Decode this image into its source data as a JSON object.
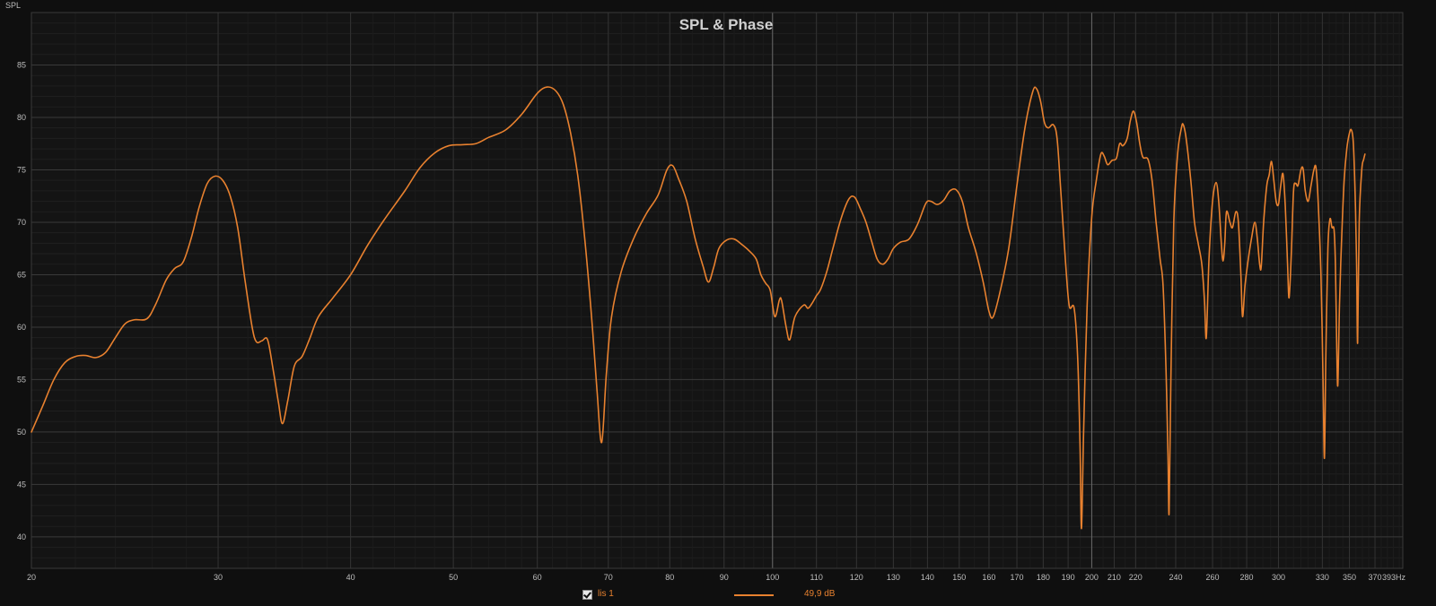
{
  "chart_data": {
    "type": "line",
    "title": "SPL & Phase",
    "ylabel": "SPL",
    "xunit": "Hz",
    "xscale": "log",
    "xlim": [
      20,
      393
    ],
    "ylim": [
      37,
      90
    ],
    "grid": true,
    "xticks": [
      {
        "v": 20,
        "label": "20"
      },
      {
        "v": 30,
        "label": "30"
      },
      {
        "v": 40,
        "label": "40"
      },
      {
        "v": 50,
        "label": "50"
      },
      {
        "v": 60,
        "label": "60"
      },
      {
        "v": 70,
        "label": "70"
      },
      {
        "v": 80,
        "label": "80"
      },
      {
        "v": 90,
        "label": "90"
      },
      {
        "v": 100,
        "label": "100"
      },
      {
        "v": 110,
        "label": "110"
      },
      {
        "v": 120,
        "label": "120"
      },
      {
        "v": 130,
        "label": "130"
      },
      {
        "v": 140,
        "label": "140"
      },
      {
        "v": 150,
        "label": "150"
      },
      {
        "v": 160,
        "label": "160"
      },
      {
        "v": 170,
        "label": "170"
      },
      {
        "v": 180,
        "label": "180"
      },
      {
        "v": 190,
        "label": "190"
      },
      {
        "v": 200,
        "label": "200"
      },
      {
        "v": 210,
        "label": "210"
      },
      {
        "v": 220,
        "label": "220"
      },
      {
        "v": 240,
        "label": "240"
      },
      {
        "v": 260,
        "label": "260"
      },
      {
        "v": 280,
        "label": "280"
      },
      {
        "v": 300,
        "label": "300"
      },
      {
        "v": 330,
        "label": "330"
      },
      {
        "v": 350,
        "label": "350"
      },
      {
        "v": 370,
        "label": "370"
      },
      {
        "v": 393,
        "label": "393Hz"
      }
    ],
    "yticks": [
      40,
      45,
      50,
      55,
      60,
      65,
      70,
      75,
      80,
      85
    ],
    "series": [
      {
        "name": "lis 1",
        "color": "#e8812f",
        "points": [
          [
            20,
            50
          ],
          [
            20.5,
            52.5
          ],
          [
            21,
            55
          ],
          [
            21.5,
            56.6
          ],
          [
            22,
            57.2
          ],
          [
            22.5,
            57.3
          ],
          [
            23,
            57.1
          ],
          [
            23.5,
            57.6
          ],
          [
            24,
            59
          ],
          [
            24.5,
            60.3
          ],
          [
            25,
            60.7
          ],
          [
            25.7,
            60.8
          ],
          [
            26.2,
            62.2
          ],
          [
            26.8,
            64.5
          ],
          [
            27.3,
            65.6
          ],
          [
            27.8,
            66.2
          ],
          [
            28.3,
            68.5
          ],
          [
            28.8,
            71.5
          ],
          [
            29.3,
            73.7
          ],
          [
            29.8,
            74.4
          ],
          [
            30.3,
            74
          ],
          [
            30.8,
            72.5
          ],
          [
            31.3,
            69.5
          ],
          [
            31.8,
            64.5
          ],
          [
            32.3,
            60
          ],
          [
            32.6,
            58.6
          ],
          [
            33,
            58.7
          ],
          [
            33.4,
            58.8
          ],
          [
            33.8,
            56
          ],
          [
            34.2,
            52.8
          ],
          [
            34.5,
            50.8
          ],
          [
            34.9,
            53
          ],
          [
            35.4,
            56.3
          ],
          [
            36,
            57.2
          ],
          [
            36.6,
            58.9
          ],
          [
            37.3,
            61
          ],
          [
            38.5,
            62.8
          ],
          [
            40,
            65
          ],
          [
            41.5,
            67.8
          ],
          [
            43,
            70.2
          ],
          [
            45,
            73
          ],
          [
            46.5,
            75.2
          ],
          [
            48,
            76.6
          ],
          [
            49.5,
            77.3
          ],
          [
            51,
            77.4
          ],
          [
            52.5,
            77.5
          ],
          [
            54,
            78.1
          ],
          [
            56,
            78.8
          ],
          [
            58,
            80.3
          ],
          [
            60,
            82.3
          ],
          [
            61.3,
            82.9
          ],
          [
            62.5,
            82.5
          ],
          [
            63.5,
            81.2
          ],
          [
            64.5,
            78.5
          ],
          [
            65.5,
            74.5
          ],
          [
            66.5,
            68.5
          ],
          [
            67.5,
            61
          ],
          [
            68.3,
            54
          ],
          [
            69,
            49
          ],
          [
            69.7,
            55.5
          ],
          [
            70.5,
            61
          ],
          [
            72,
            65.3
          ],
          [
            74,
            68.5
          ],
          [
            76,
            70.8
          ],
          [
            78,
            72.6
          ],
          [
            79.5,
            75
          ],
          [
            80.5,
            75.4
          ],
          [
            81.5,
            74.2
          ],
          [
            83,
            72
          ],
          [
            84.5,
            68.5
          ],
          [
            86,
            65.8
          ],
          [
            87,
            64.3
          ],
          [
            88,
            65.7
          ],
          [
            89,
            67.5
          ],
          [
            90.5,
            68.3
          ],
          [
            92,
            68.4
          ],
          [
            93.5,
            67.9
          ],
          [
            95,
            67.3
          ],
          [
            96.5,
            66.5
          ],
          [
            97.5,
            65
          ],
          [
            98.5,
            64.2
          ],
          [
            99.5,
            63.5
          ],
          [
            100.5,
            61
          ],
          [
            101.5,
            62.6
          ],
          [
            102,
            62.5
          ],
          [
            103,
            60
          ],
          [
            103.8,
            58.8
          ],
          [
            105,
            61
          ],
          [
            107,
            62.1
          ],
          [
            108,
            61.8
          ],
          [
            109,
            62.3
          ],
          [
            110,
            63
          ],
          [
            111,
            63.6
          ],
          [
            112.5,
            65.3
          ],
          [
            114,
            67.5
          ],
          [
            116,
            70.3
          ],
          [
            118,
            72.2
          ],
          [
            119.5,
            72.4
          ],
          [
            121,
            71.3
          ],
          [
            122.5,
            70
          ],
          [
            124,
            68.2
          ],
          [
            125.5,
            66.5
          ],
          [
            127,
            66
          ],
          [
            128.5,
            66.5
          ],
          [
            130,
            67.5
          ],
          [
            132,
            68.1
          ],
          [
            134.5,
            68.4
          ],
          [
            137,
            69.8
          ],
          [
            139.5,
            71.8
          ],
          [
            141,
            72
          ],
          [
            143,
            71.7
          ],
          [
            145,
            72.1
          ],
          [
            147,
            73
          ],
          [
            149,
            73.1
          ],
          [
            151,
            72
          ],
          [
            153,
            69.5
          ],
          [
            155.5,
            67.2
          ],
          [
            158,
            64.3
          ],
          [
            160,
            61.5
          ],
          [
            161.5,
            61
          ],
          [
            164,
            63.5
          ],
          [
            167,
            67.5
          ],
          [
            170,
            73.5
          ],
          [
            173,
            79
          ],
          [
            176,
            82.5
          ],
          [
            177.5,
            82.7
          ],
          [
            179,
            81.5
          ],
          [
            180.5,
            79.5
          ],
          [
            182,
            79
          ],
          [
            184,
            79.3
          ],
          [
            185.5,
            78
          ],
          [
            187,
            73
          ],
          [
            189,
            66
          ],
          [
            190.5,
            62
          ],
          [
            192.5,
            61.8
          ],
          [
            194,
            57
          ],
          [
            195,
            48.5
          ],
          [
            195.6,
            40.8
          ],
          [
            196.5,
            50
          ],
          [
            198,
            62
          ],
          [
            200,
            70.5
          ],
          [
            202,
            74
          ],
          [
            204,
            76.5
          ],
          [
            205.5,
            76.3
          ],
          [
            207,
            75.5
          ],
          [
            209,
            75.9
          ],
          [
            211,
            76.1
          ],
          [
            212.5,
            77.5
          ],
          [
            214,
            77.3
          ],
          [
            216,
            78
          ],
          [
            217.5,
            79.7
          ],
          [
            219,
            80.6
          ],
          [
            220.5,
            79.5
          ],
          [
            222,
            77.5
          ],
          [
            223.5,
            76.2
          ],
          [
            226,
            76
          ],
          [
            228,
            74
          ],
          [
            230,
            70
          ],
          [
            232,
            66.5
          ],
          [
            233.5,
            64
          ],
          [
            235,
            56
          ],
          [
            236,
            48
          ],
          [
            236.6,
            42.3
          ],
          [
            237.5,
            55
          ],
          [
            239,
            70
          ],
          [
            241,
            76.5
          ],
          [
            243,
            79
          ],
          [
            244,
            79.3
          ],
          [
            245.5,
            78
          ],
          [
            248,
            74
          ],
          [
            250,
            70
          ],
          [
            252,
            68
          ],
          [
            254,
            66
          ],
          [
            255.5,
            62.5
          ],
          [
            256.5,
            59
          ],
          [
            258,
            66.5
          ],
          [
            260,
            72
          ],
          [
            262,
            73.8
          ],
          [
            263.5,
            72
          ],
          [
            265,
            68
          ],
          [
            266,
            66.3
          ],
          [
            267,
            68
          ],
          [
            268,
            71
          ],
          [
            270,
            70
          ],
          [
            271.5,
            69.5
          ],
          [
            273.5,
            71
          ],
          [
            275,
            70
          ],
          [
            276.5,
            65
          ],
          [
            277.5,
            61
          ],
          [
            279,
            64
          ],
          [
            281,
            66.5
          ],
          [
            283,
            68.5
          ],
          [
            285,
            70
          ],
          [
            286.5,
            68.5
          ],
          [
            288,
            66
          ],
          [
            289,
            65.8
          ],
          [
            290.5,
            70
          ],
          [
            292.5,
            73.5
          ],
          [
            294,
            74.5
          ],
          [
            295.5,
            75.8
          ],
          [
            297,
            74
          ],
          [
            298.5,
            72
          ],
          [
            300,
            71.7
          ],
          [
            301.5,
            73.5
          ],
          [
            303,
            74.6
          ],
          [
            304.5,
            71.5
          ],
          [
            306,
            66
          ],
          [
            307,
            62.8
          ],
          [
            308.5,
            67
          ],
          [
            310,
            73
          ],
          [
            311.5,
            73.7
          ],
          [
            313,
            73.5
          ],
          [
            315,
            75
          ],
          [
            316.5,
            75.1
          ],
          [
            318,
            73
          ],
          [
            320,
            72
          ],
          [
            322,
            73.5
          ],
          [
            324,
            75
          ],
          [
            325.5,
            75.2
          ],
          [
            327,
            72
          ],
          [
            329,
            65
          ],
          [
            330.5,
            55
          ],
          [
            331.5,
            47.5
          ],
          [
            332.5,
            57
          ],
          [
            334,
            67.5
          ],
          [
            335.5,
            70.3
          ],
          [
            337,
            69.5
          ],
          [
            338.5,
            69.3
          ],
          [
            339.5,
            66
          ],
          [
            340.5,
            58
          ],
          [
            341.3,
            54.5
          ],
          [
            342.5,
            62
          ],
          [
            344,
            68
          ],
          [
            346,
            74
          ],
          [
            348,
            77
          ],
          [
            350,
            78.5
          ],
          [
            351.5,
            78.8
          ],
          [
            353,
            77.5
          ],
          [
            354.5,
            72
          ],
          [
            355.5,
            66
          ],
          [
            356.3,
            58.5
          ],
          [
            357.5,
            70
          ],
          [
            359.5,
            75
          ],
          [
            361,
            76
          ],
          [
            362,
            76.5
          ]
        ]
      }
    ]
  },
  "legend": {
    "series_name": "lis 1",
    "checked": true,
    "value": "49,9 dB"
  }
}
